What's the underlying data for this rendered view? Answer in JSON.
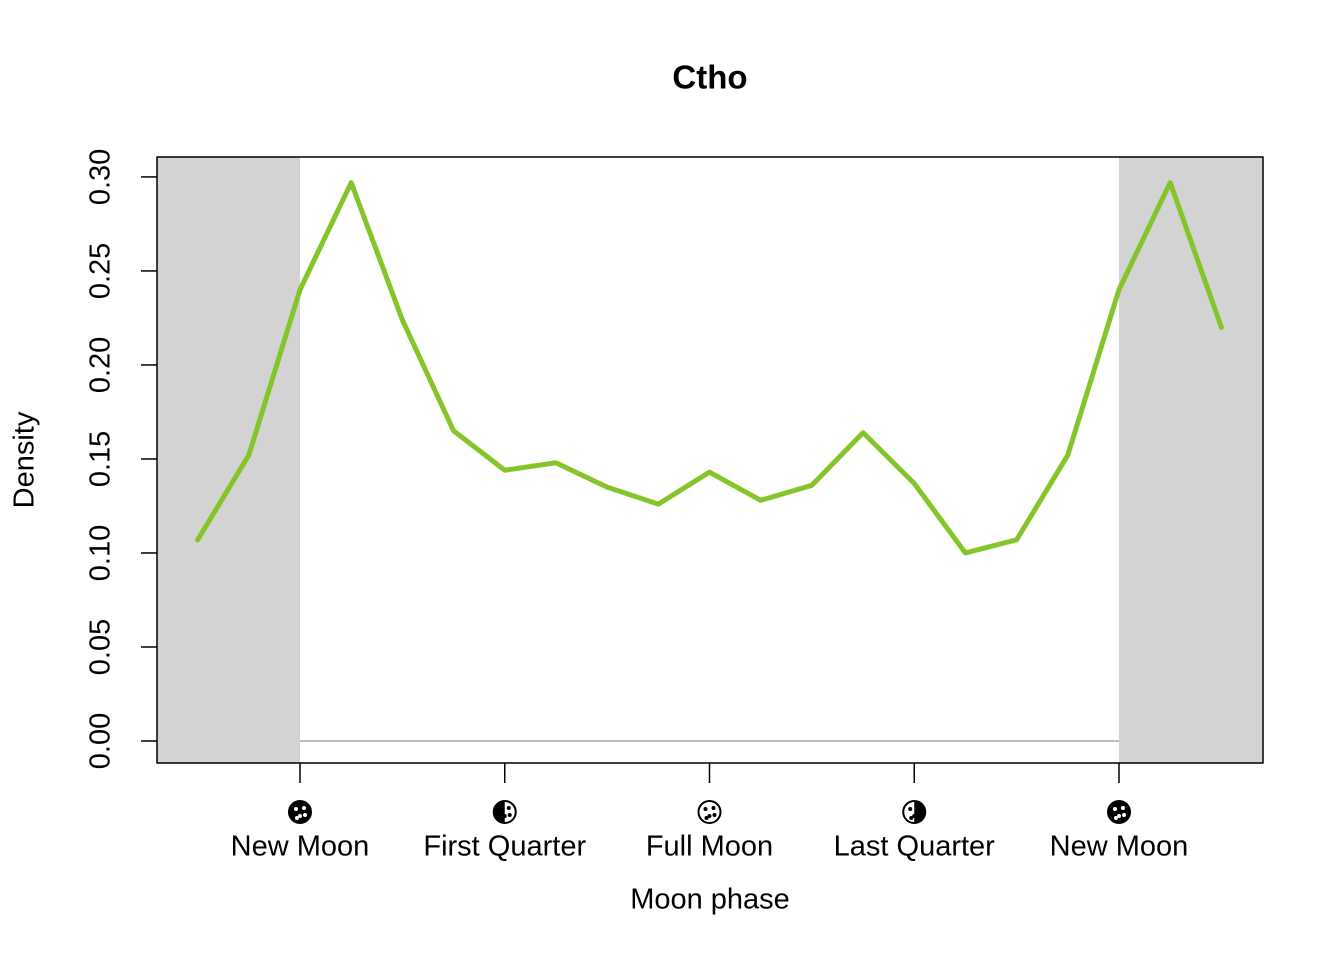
{
  "chart_data": {
    "type": "line",
    "title": "Ctho",
    "x_label": "Moon phase",
    "y_label": "Density",
    "x": [
      -0.785,
      -0.393,
      0,
      0.393,
      0.785,
      1.178,
      1.571,
      1.963,
      2.356,
      2.749,
      3.142,
      3.534,
      3.927,
      4.32,
      4.712,
      5.105,
      5.498,
      5.89,
      6.283,
      6.676,
      7.069
    ],
    "series": [
      {
        "name": "Ctho",
        "color": "#84c52a",
        "values": [
          0.107,
          0.152,
          0.24,
          0.297,
          0.224,
          0.165,
          0.144,
          0.148,
          0.135,
          0.126,
          0.143,
          0.128,
          0.136,
          0.164,
          0.137,
          0.1,
          0.107,
          0.152,
          0.24,
          0.297,
          0.22
        ]
      }
    ],
    "xlim": [
      -1.097,
      7.388
    ],
    "ylim": [
      -0.0117,
      0.3106
    ],
    "xticks": [
      {
        "value": 0,
        "label": "New Moon"
      },
      {
        "value": 1.5708,
        "label": "First Quarter"
      },
      {
        "value": 3.1416,
        "label": "Full Moon"
      },
      {
        "value": 4.7124,
        "label": "Last Quarter"
      },
      {
        "value": 6.2832,
        "label": "New Moon"
      }
    ],
    "yticks": [
      {
        "value": 0,
        "label": "0.00"
      },
      {
        "value": 0.05,
        "label": "0.05"
      },
      {
        "value": 0.1,
        "label": "0.10"
      },
      {
        "value": 0.15,
        "label": "0.15"
      },
      {
        "value": 0.2,
        "label": "0.20"
      },
      {
        "value": 0.25,
        "label": "0.25"
      },
      {
        "value": 0.3,
        "label": "0.30"
      }
    ],
    "shade_color": "#d3d3d3"
  }
}
